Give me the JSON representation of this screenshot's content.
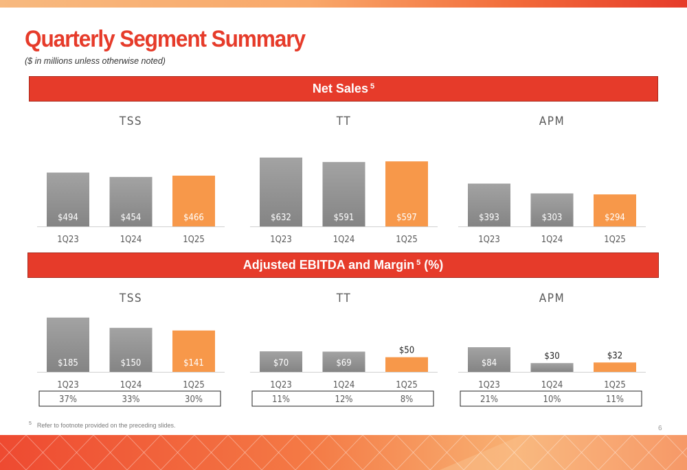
{
  "title": "Quarterly Segment Summary",
  "subtitle": "($ in millions unless otherwise noted)",
  "banners": {
    "net_sales": {
      "label": "Net Sales",
      "sup": "5"
    },
    "ebitda": {
      "label": "Adjusted EBITDA and Margin",
      "sup": "5",
      "suffix": " (%)"
    }
  },
  "colors": {
    "accent": "#e63b2a",
    "bar_gray": "#8c8c8c",
    "bar_orange": "#f7984a"
  },
  "footnote": {
    "marker": "5",
    "text": "Refer to footnote provided on the preceding slides."
  },
  "page_number": "6",
  "chart_data": [
    {
      "id": "ns-tss",
      "type": "bar",
      "title": "TSS",
      "categories": [
        "1Q23",
        "1Q24",
        "1Q25"
      ],
      "values": [
        494,
        454,
        466
      ],
      "labels": [
        "$494",
        "$454",
        "$466"
      ],
      "ylim": [
        0,
        680
      ],
      "highlight_index": 2
    },
    {
      "id": "ns-tt",
      "type": "bar",
      "title": "TT",
      "categories": [
        "1Q23",
        "1Q24",
        "1Q25"
      ],
      "values": [
        632,
        591,
        597
      ],
      "labels": [
        "$632",
        "$591",
        "$597"
      ],
      "ylim": [
        0,
        680
      ],
      "highlight_index": 2
    },
    {
      "id": "ns-apm",
      "type": "bar",
      "title": "APM",
      "categories": [
        "1Q23",
        "1Q24",
        "1Q25"
      ],
      "values": [
        393,
        303,
        294
      ],
      "labels": [
        "$393",
        "$303",
        "$294"
      ],
      "ylim": [
        0,
        680
      ],
      "highlight_index": 2
    },
    {
      "id": "eb-tss",
      "type": "bar",
      "title": "TSS",
      "categories": [
        "1Q23",
        "1Q24",
        "1Q25"
      ],
      "values": [
        185,
        150,
        141
      ],
      "labels": [
        "$185",
        "$150",
        "$141"
      ],
      "ylim": [
        0,
        215
      ],
      "highlight_index": 2,
      "margins": [
        "37%",
        "33%",
        "30%"
      ]
    },
    {
      "id": "eb-tt",
      "type": "bar",
      "title": "TT",
      "categories": [
        "1Q23",
        "1Q24",
        "1Q25"
      ],
      "values": [
        70,
        69,
        50
      ],
      "labels": [
        "$70",
        "$69",
        "$50"
      ],
      "ylim": [
        0,
        215
      ],
      "highlight_index": 2,
      "margins": [
        "11%",
        "12%",
        "8%"
      ]
    },
    {
      "id": "eb-apm",
      "type": "bar",
      "title": "APM",
      "categories": [
        "1Q23",
        "1Q24",
        "1Q25"
      ],
      "values": [
        84,
        30,
        32
      ],
      "labels": [
        "$84",
        "$30",
        "$32"
      ],
      "ylim": [
        0,
        215
      ],
      "highlight_index": 2,
      "margins": [
        "21%",
        "10%",
        "11%"
      ]
    }
  ]
}
